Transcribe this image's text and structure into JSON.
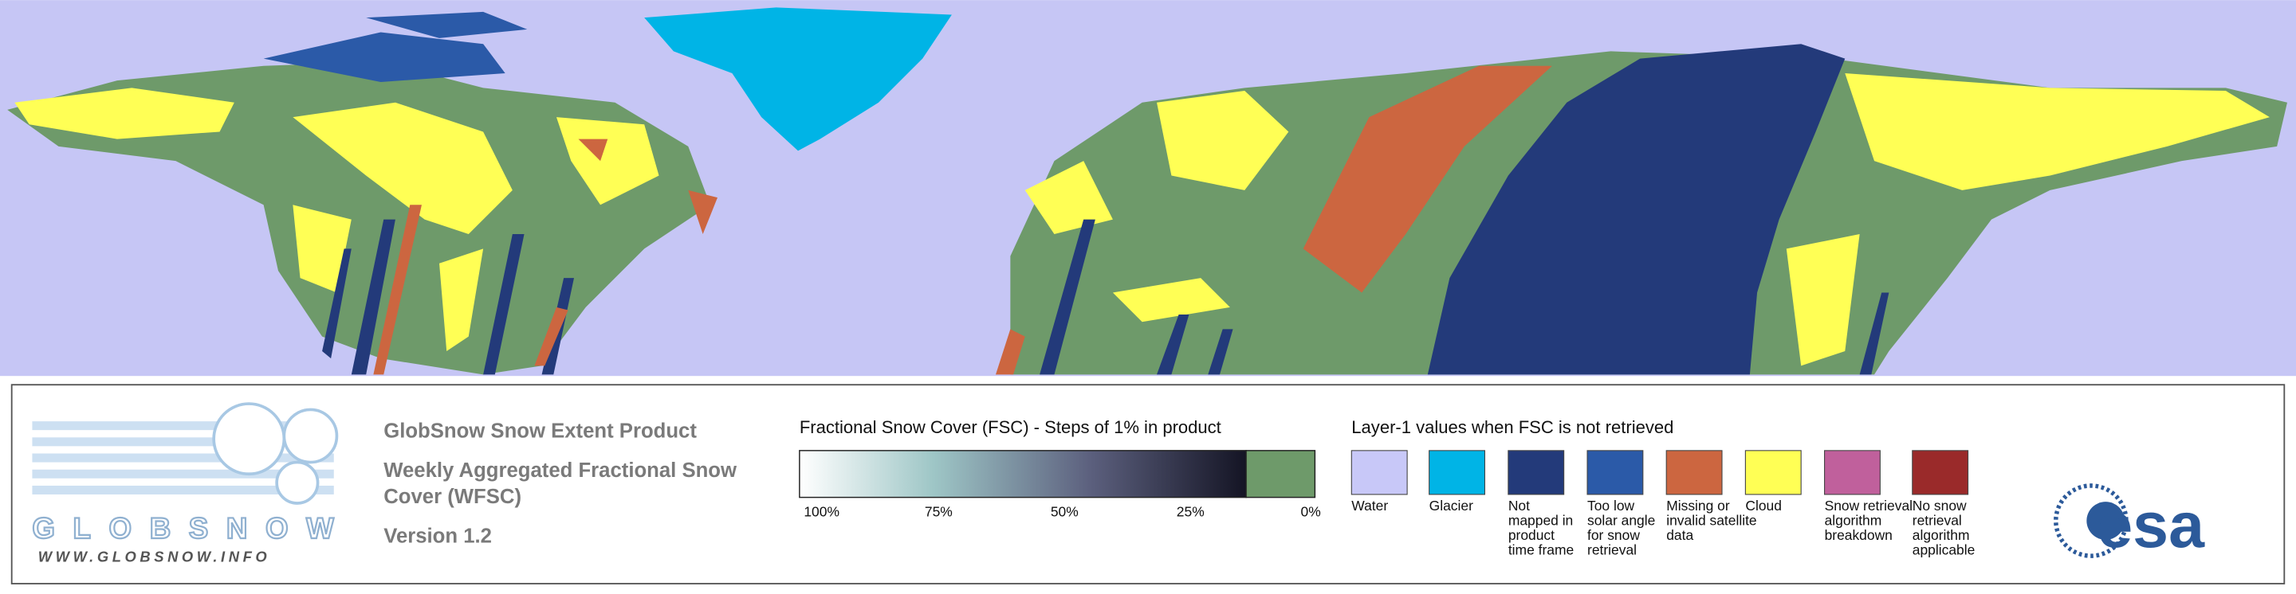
{
  "logo": {
    "name": "GLOBSNOW",
    "url": "WWW.GLOBSNOW.INFO"
  },
  "product": {
    "title": "GlobSnow Snow Extent Product",
    "subtitle_lines": [
      "Weekly Aggregated Fractional Snow",
      "Cover (WFSC)"
    ],
    "version": "Version 1.2"
  },
  "fsc_legend": {
    "title": "Fractional Snow Cover (FSC) - Steps of 1% in product",
    "labels": [
      "100%",
      "75%",
      "50%",
      "25%",
      "0%"
    ]
  },
  "layer1_legend": {
    "title": "Layer-1 values when FSC is not retrieved",
    "items": [
      {
        "lines": [
          "Water"
        ],
        "color": "#c8c8f8"
      },
      {
        "lines": [
          "Glacier"
        ],
        "color": "#00b4e6"
      },
      {
        "lines": [
          "Not",
          "mapped in",
          "product",
          "time frame"
        ],
        "color": "#233a7a"
      },
      {
        "lines": [
          "Too low",
          "solar angle",
          "for snow",
          "retrieval"
        ],
        "color": "#2b5aa8"
      },
      {
        "lines": [
          "Missing or",
          "invalid satellite",
          "data"
        ],
        "color": "#cc6640"
      },
      {
        "lines": [
          "Cloud"
        ],
        "color": "#ffff55"
      },
      {
        "lines": [
          "Snow retrieval",
          "algorithm",
          "breakdown"
        ],
        "color": "#c0609c"
      },
      {
        "lines": [
          "No snow",
          "retrieval",
          "algorithm",
          "applicable"
        ],
        "color": "#9a2a2a"
      }
    ]
  },
  "agency_logo": "esa"
}
